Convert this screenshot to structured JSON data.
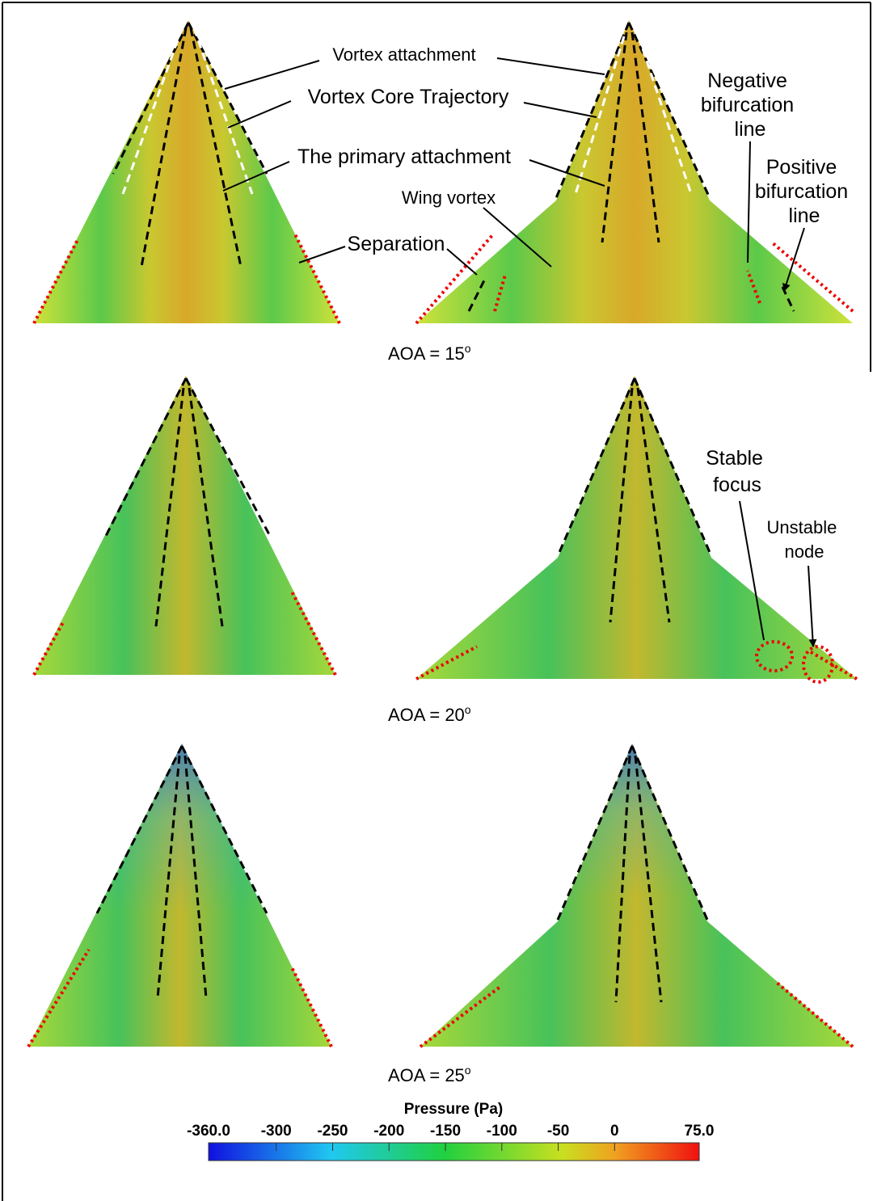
{
  "annotations": {
    "vortex_attachment": "Vortex  attachment",
    "vortex_core": "Vortex Core Trajectory",
    "primary_attachment": "The primary attachment",
    "wing_vortex": "Wing vortex",
    "separation": "Separation",
    "negative_bifurcation": [
      "Negative",
      "bifurcation",
      "line"
    ],
    "positive_bifurcation": [
      "Positive",
      "bifurcation",
      "line"
    ],
    "stable_focus": [
      "Stable",
      "focus"
    ],
    "unstable_node": [
      "Unstable",
      "node"
    ]
  },
  "rows": [
    {
      "label": "AOA = 15",
      "degree": "o"
    },
    {
      "label": "AOA = 20",
      "degree": "o"
    },
    {
      "label": "AOA = 25",
      "degree": "o"
    }
  ],
  "colorbar": {
    "title": "Pressure (Pa)",
    "lim": [
      -360,
      75
    ],
    "ticks": [
      {
        "value": -360,
        "label": "-360.0"
      },
      -300,
      -250,
      -200,
      -150,
      -100,
      -50,
      0,
      {
        "value": 75,
        "label": "75.0"
      }
    ]
  }
}
